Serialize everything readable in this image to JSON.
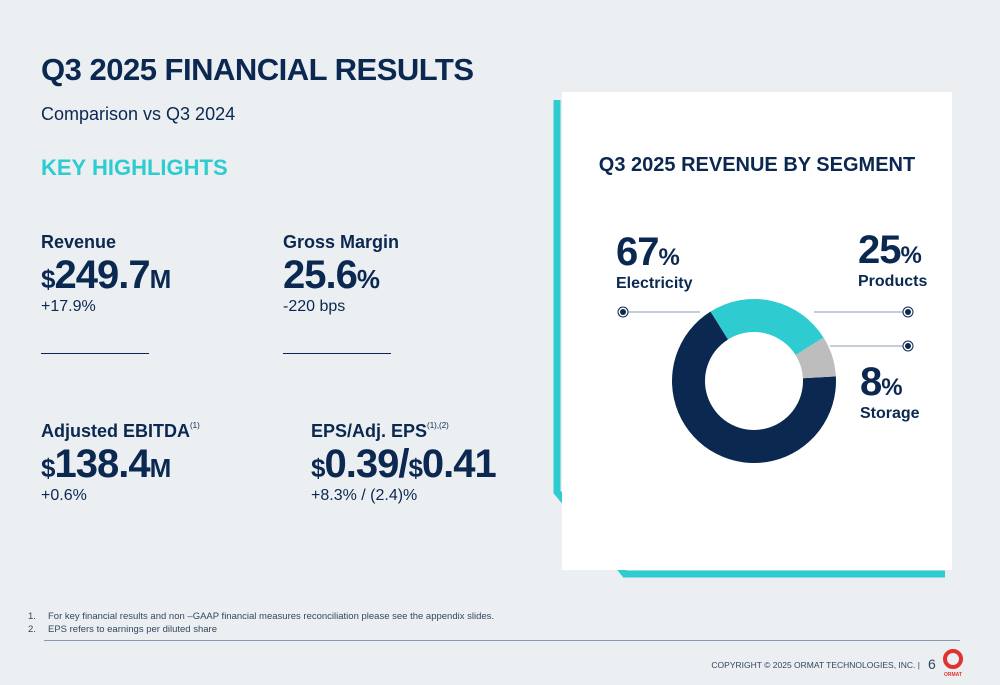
{
  "title": "Q3 2025 FINANCIAL RESULTS",
  "subtitle": "Comparison vs Q3 2024",
  "section": "KEY HIGHLIGHTS",
  "metrics": [
    {
      "label": "Revenue",
      "sup": "",
      "prefix": "$",
      "value": "249.7",
      "unit": "M",
      "change": "+17.9%"
    },
    {
      "label": "Gross Margin",
      "sup": "",
      "prefix": "",
      "value": "25.6",
      "unit": "%",
      "change": "-220 bps"
    },
    {
      "label": "Adjusted EBITDA",
      "sup": "(1)",
      "prefix": "$",
      "value": "138.4",
      "unit": "M",
      "change": "+0.6%"
    },
    {
      "label": "EPS/Adj. EPS",
      "sup": "(1),(2)",
      "prefix": "$",
      "value": "0.39/",
      "prefix2": "$",
      "value2": "0.41",
      "change": "+8.3% / (2.4)%"
    }
  ],
  "chart_data": {
    "type": "pie",
    "title": "Q3 2025 REVENUE BY SEGMENT",
    "donut": true,
    "categories": [
      "Products",
      "Storage",
      "Electricity"
    ],
    "values": [
      25,
      8,
      67
    ],
    "labels": [
      "25",
      "8",
      "67"
    ],
    "unit": "%",
    "colors": [
      "#2ecbd1",
      "#bdbdbd",
      "#0a2850"
    ]
  },
  "footnotes": [
    "For key financial results and non –GAAP financial measures reconciliation please see the appendix slides.",
    "EPS refers to earnings per diluted share"
  ],
  "footnote_nums": [
    "1.",
    "2."
  ],
  "copyright": "COPYRIGHT © 2025 ORMAT TECHNOLOGIES, INC.  |",
  "page": "6",
  "logo": "ORMAT",
  "colors": {
    "navy": "#0a2850",
    "teal": "#2ecbd1",
    "bg": "#eceff2"
  }
}
